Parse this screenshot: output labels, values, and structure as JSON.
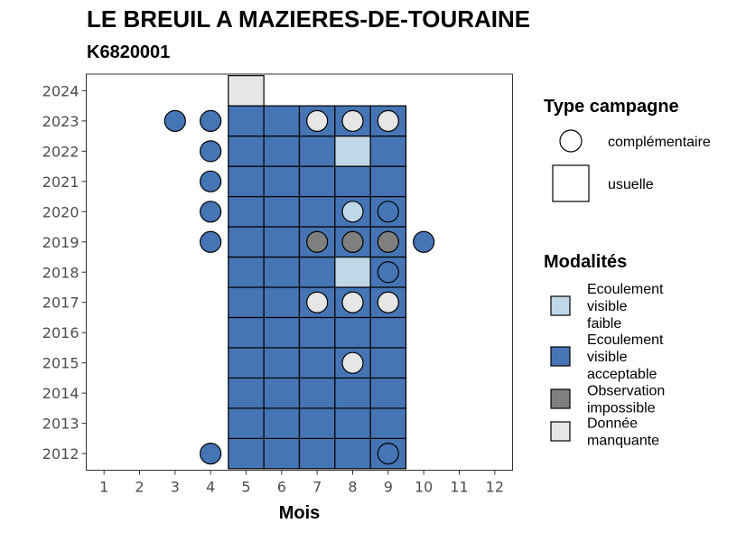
{
  "chart_data": {
    "type": "heatmap",
    "title": "LE BREUIL A MAZIERES-DE-TOURAINE",
    "subtitle": "K6820001",
    "xlabel": "Mois",
    "ylabel": "",
    "x_ticks": [
      1,
      2,
      3,
      4,
      5,
      6,
      7,
      8,
      9,
      10,
      11,
      12
    ],
    "y_ticks": [
      2012,
      2013,
      2014,
      2015,
      2016,
      2017,
      2018,
      2019,
      2020,
      2021,
      2022,
      2023,
      2024
    ],
    "xlim": [
      0.5,
      12.5
    ],
    "ylim": [
      2011.45,
      2024.55
    ],
    "grid": false,
    "legend_position": "right",
    "legend_campaign": {
      "title": "Type campagne",
      "entries": [
        {
          "shape": "circle",
          "label": "complémentaire"
        },
        {
          "shape": "square",
          "label": "usuelle"
        }
      ]
    },
    "legend_modalities": {
      "title": "Modalités",
      "entries": [
        {
          "key": "faible",
          "lines": [
            "Ecoulement",
            "visible",
            "faible"
          ],
          "color": "#bfd7e7"
        },
        {
          "key": "acceptable",
          "lines": [
            "Ecoulement",
            "visible",
            "acceptable"
          ],
          "color": "#4575b4"
        },
        {
          "key": "impossible",
          "lines": [
            "Observation",
            "impossible"
          ],
          "color": "#7f7f7f"
        },
        {
          "key": "manquante",
          "lines": [
            "Donnée",
            "manquante"
          ],
          "color": "#e6e6e6"
        }
      ]
    },
    "tiles_usuelle": [
      {
        "year": 2012,
        "month": 5,
        "m": "acceptable"
      },
      {
        "year": 2012,
        "month": 6,
        "m": "acceptable"
      },
      {
        "year": 2012,
        "month": 7,
        "m": "acceptable"
      },
      {
        "year": 2012,
        "month": 8,
        "m": "acceptable"
      },
      {
        "year": 2012,
        "month": 9,
        "m": "acceptable"
      },
      {
        "year": 2013,
        "month": 5,
        "m": "acceptable"
      },
      {
        "year": 2013,
        "month": 6,
        "m": "acceptable"
      },
      {
        "year": 2013,
        "month": 7,
        "m": "acceptable"
      },
      {
        "year": 2013,
        "month": 8,
        "m": "acceptable"
      },
      {
        "year": 2013,
        "month": 9,
        "m": "acceptable"
      },
      {
        "year": 2014,
        "month": 5,
        "m": "acceptable"
      },
      {
        "year": 2014,
        "month": 6,
        "m": "acceptable"
      },
      {
        "year": 2014,
        "month": 7,
        "m": "acceptable"
      },
      {
        "year": 2014,
        "month": 8,
        "m": "acceptable"
      },
      {
        "year": 2014,
        "month": 9,
        "m": "acceptable"
      },
      {
        "year": 2015,
        "month": 5,
        "m": "acceptable"
      },
      {
        "year": 2015,
        "month": 6,
        "m": "acceptable"
      },
      {
        "year": 2015,
        "month": 7,
        "m": "acceptable"
      },
      {
        "year": 2015,
        "month": 8,
        "m": "acceptable"
      },
      {
        "year": 2015,
        "month": 9,
        "m": "acceptable"
      },
      {
        "year": 2016,
        "month": 5,
        "m": "acceptable"
      },
      {
        "year": 2016,
        "month": 6,
        "m": "acceptable"
      },
      {
        "year": 2016,
        "month": 7,
        "m": "acceptable"
      },
      {
        "year": 2016,
        "month": 8,
        "m": "acceptable"
      },
      {
        "year": 2016,
        "month": 9,
        "m": "acceptable"
      },
      {
        "year": 2017,
        "month": 5,
        "m": "acceptable"
      },
      {
        "year": 2017,
        "month": 6,
        "m": "acceptable"
      },
      {
        "year": 2017,
        "month": 7,
        "m": "acceptable"
      },
      {
        "year": 2017,
        "month": 8,
        "m": "acceptable"
      },
      {
        "year": 2017,
        "month": 9,
        "m": "acceptable"
      },
      {
        "year": 2018,
        "month": 5,
        "m": "acceptable"
      },
      {
        "year": 2018,
        "month": 6,
        "m": "acceptable"
      },
      {
        "year": 2018,
        "month": 7,
        "m": "acceptable"
      },
      {
        "year": 2018,
        "month": 8,
        "m": "faible"
      },
      {
        "year": 2018,
        "month": 9,
        "m": "acceptable"
      },
      {
        "year": 2019,
        "month": 5,
        "m": "acceptable"
      },
      {
        "year": 2019,
        "month": 6,
        "m": "acceptable"
      },
      {
        "year": 2019,
        "month": 7,
        "m": "acceptable"
      },
      {
        "year": 2019,
        "month": 8,
        "m": "acceptable"
      },
      {
        "year": 2019,
        "month": 9,
        "m": "acceptable"
      },
      {
        "year": 2020,
        "month": 5,
        "m": "acceptable"
      },
      {
        "year": 2020,
        "month": 6,
        "m": "acceptable"
      },
      {
        "year": 2020,
        "month": 7,
        "m": "acceptable"
      },
      {
        "year": 2020,
        "month": 8,
        "m": "acceptable"
      },
      {
        "year": 2020,
        "month": 9,
        "m": "acceptable"
      },
      {
        "year": 2021,
        "month": 5,
        "m": "acceptable"
      },
      {
        "year": 2021,
        "month": 6,
        "m": "acceptable"
      },
      {
        "year": 2021,
        "month": 7,
        "m": "acceptable"
      },
      {
        "year": 2021,
        "month": 8,
        "m": "acceptable"
      },
      {
        "year": 2021,
        "month": 9,
        "m": "acceptable"
      },
      {
        "year": 2022,
        "month": 5,
        "m": "acceptable"
      },
      {
        "year": 2022,
        "month": 6,
        "m": "acceptable"
      },
      {
        "year": 2022,
        "month": 7,
        "m": "acceptable"
      },
      {
        "year": 2022,
        "month": 8,
        "m": "faible"
      },
      {
        "year": 2022,
        "month": 9,
        "m": "acceptable"
      },
      {
        "year": 2023,
        "month": 5,
        "m": "acceptable"
      },
      {
        "year": 2023,
        "month": 6,
        "m": "acceptable"
      },
      {
        "year": 2023,
        "month": 7,
        "m": "acceptable"
      },
      {
        "year": 2023,
        "month": 8,
        "m": "acceptable"
      },
      {
        "year": 2023,
        "month": 9,
        "m": "acceptable"
      },
      {
        "year": 2024,
        "month": 5,
        "m": "manquante"
      }
    ],
    "points_complementaire": [
      {
        "year": 2012,
        "month": 4,
        "m": "acceptable"
      },
      {
        "year": 2012,
        "month": 9,
        "m": "acceptable"
      },
      {
        "year": 2015,
        "month": 8,
        "m": "manquante"
      },
      {
        "year": 2017,
        "month": 7,
        "m": "manquante"
      },
      {
        "year": 2017,
        "month": 8,
        "m": "manquante"
      },
      {
        "year": 2017,
        "month": 9,
        "m": "manquante"
      },
      {
        "year": 2018,
        "month": 9,
        "m": "acceptable"
      },
      {
        "year": 2019,
        "month": 4,
        "m": "acceptable"
      },
      {
        "year": 2019,
        "month": 7,
        "m": "impossible"
      },
      {
        "year": 2019,
        "month": 8,
        "m": "impossible"
      },
      {
        "year": 2019,
        "month": 9,
        "m": "impossible"
      },
      {
        "year": 2019,
        "month": 10,
        "m": "acceptable"
      },
      {
        "year": 2020,
        "month": 4,
        "m": "acceptable"
      },
      {
        "year": 2020,
        "month": 8,
        "m": "faible"
      },
      {
        "year": 2020,
        "month": 9,
        "m": "acceptable"
      },
      {
        "year": 2021,
        "month": 4,
        "m": "acceptable"
      },
      {
        "year": 2022,
        "month": 4,
        "m": "acceptable"
      },
      {
        "year": 2023,
        "month": 3,
        "m": "acceptable"
      },
      {
        "year": 2023,
        "month": 4,
        "m": "acceptable"
      },
      {
        "year": 2023,
        "month": 7,
        "m": "manquante"
      },
      {
        "year": 2023,
        "month": 8,
        "m": "manquante"
      },
      {
        "year": 2023,
        "month": 9,
        "m": "manquante"
      }
    ]
  }
}
